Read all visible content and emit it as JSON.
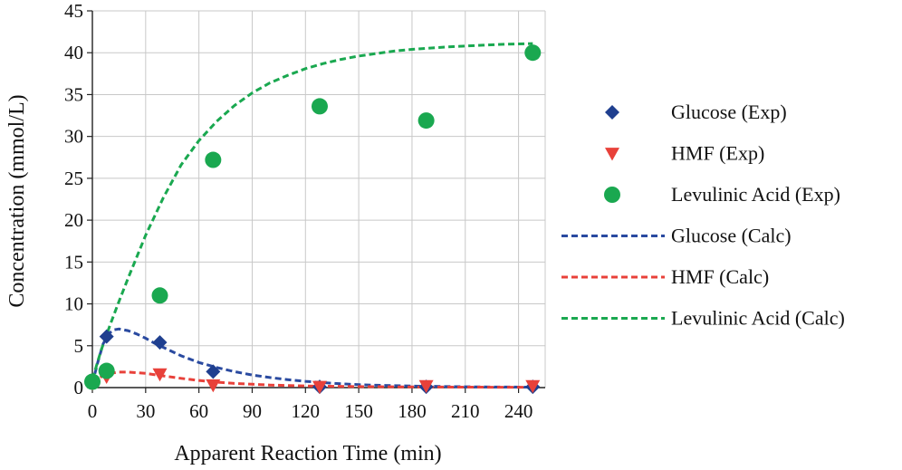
{
  "chart_data": {
    "type": "scatter",
    "xlabel": "Apparent Reaction Time (min)",
    "ylabel": "Concentration (mmol/L)",
    "xlim": [
      0,
      255
    ],
    "ylim": [
      0,
      45
    ],
    "xticks": [
      0,
      30,
      60,
      90,
      120,
      150,
      180,
      210,
      240
    ],
    "yticks": [
      0,
      5,
      10,
      15,
      20,
      25,
      30,
      35,
      40,
      45
    ],
    "xtick_labels": [
      "0",
      "30",
      "60",
      "90",
      "120",
      "150",
      "180",
      "210",
      "240"
    ],
    "ytick_labels": [
      "0",
      "5",
      "10",
      "15",
      "20",
      "25",
      "30",
      "35",
      "40",
      "45"
    ],
    "grid": true,
    "legend_position": "right",
    "series": [
      {
        "name": "Glucose (Exp)",
        "kind": "marker",
        "marker": "diamond",
        "color": "#1f3f8f",
        "x": [
          0,
          8,
          38,
          68,
          128,
          188,
          248
        ],
        "y": [
          0.7,
          6.1,
          5.4,
          1.9,
          0.1,
          0.1,
          0.1
        ]
      },
      {
        "name": "HMF (Exp)",
        "kind": "marker",
        "marker": "triangle-down",
        "color": "#e8413a",
        "x": [
          0,
          8,
          38,
          68,
          128,
          188,
          248
        ],
        "y": [
          0.5,
          1.3,
          1.6,
          0.3,
          0.1,
          0.2,
          0.2
        ]
      },
      {
        "name": "Levulinic Acid (Exp)",
        "kind": "marker",
        "marker": "circle",
        "color": "#1aa850",
        "x": [
          0,
          8,
          38,
          68,
          128,
          188,
          248
        ],
        "y": [
          0.7,
          2.0,
          11.0,
          27.2,
          33.6,
          31.9,
          40.0
        ]
      },
      {
        "name": "Glucose (Calc)",
        "kind": "line",
        "color": "#2a4aa0",
        "x": [
          0,
          3,
          6,
          9,
          12,
          15,
          20,
          25,
          30,
          35,
          40,
          50,
          60,
          70,
          80,
          90,
          100,
          110,
          120,
          130,
          140,
          150,
          160,
          180,
          200,
          220,
          248
        ],
        "y": [
          0.5,
          3.0,
          5.2,
          6.4,
          6.9,
          7.0,
          6.8,
          6.4,
          5.9,
          5.3,
          4.8,
          3.8,
          3.0,
          2.4,
          1.9,
          1.5,
          1.2,
          0.95,
          0.75,
          0.6,
          0.45,
          0.35,
          0.28,
          0.18,
          0.12,
          0.08,
          0.05
        ]
      },
      {
        "name": "HMF (Calc)",
        "kind": "line",
        "color": "#e8413a",
        "x": [
          0,
          5,
          10,
          15,
          20,
          30,
          40,
          50,
          60,
          70,
          80,
          90,
          100,
          120,
          150,
          180,
          210,
          248
        ],
        "y": [
          0.5,
          1.3,
          1.7,
          1.85,
          1.85,
          1.7,
          1.4,
          1.1,
          0.85,
          0.65,
          0.5,
          0.4,
          0.3,
          0.2,
          0.12,
          0.08,
          0.05,
          0.03
        ]
      },
      {
        "name": "Levulinic Acid (Calc)",
        "kind": "line",
        "color": "#1aa850",
        "x": [
          0,
          5,
          10,
          15,
          20,
          25,
          30,
          40,
          50,
          60,
          70,
          80,
          90,
          100,
          110,
          120,
          130,
          140,
          150,
          160,
          170,
          180,
          190,
          200,
          210,
          220,
          230,
          240,
          248
        ],
        "y": [
          1.0,
          4.5,
          7.5,
          10.3,
          13.0,
          15.6,
          18.2,
          22.7,
          26.6,
          29.5,
          31.8,
          33.7,
          35.2,
          36.4,
          37.3,
          38.1,
          38.7,
          39.2,
          39.6,
          39.9,
          40.2,
          40.4,
          40.55,
          40.7,
          40.8,
          40.9,
          41.0,
          41.05,
          41.1
        ]
      }
    ]
  }
}
